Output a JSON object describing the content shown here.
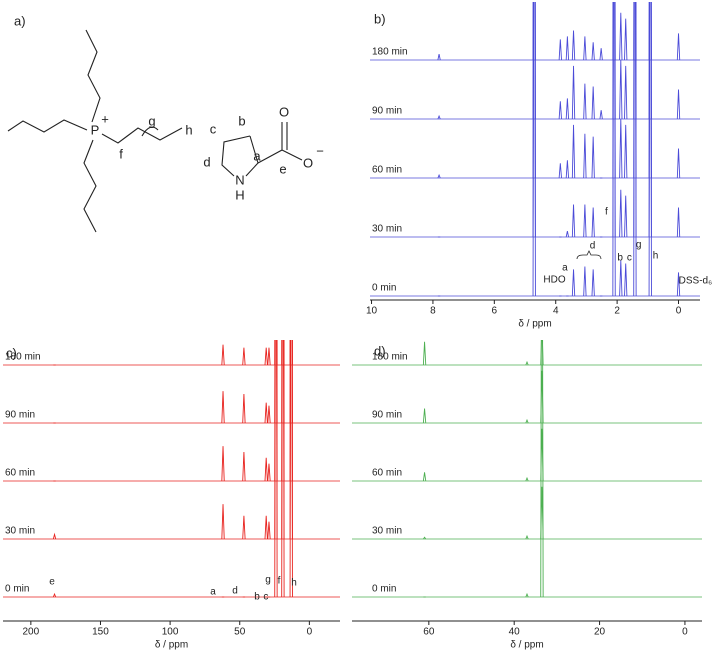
{
  "structure": {
    "panel_label": "a)",
    "atom_labels": [
      "P",
      "+",
      "f",
      "g",
      "h",
      "c",
      "b",
      "d",
      "a",
      "e",
      "N",
      "H",
      "O",
      "O",
      "−"
    ]
  },
  "chart_data": [
    {
      "type": "nmr",
      "panel_label": "b)",
      "xlabel": "δ / ppm",
      "color": "#4b4bd8",
      "xlim": [
        10.05,
        -0.7
      ],
      "xticks": [
        10,
        8,
        6,
        4,
        2,
        0
      ],
      "x": [
        4.7,
        3.42,
        3.05,
        2.78,
        2.1,
        1.88,
        1.72,
        1.42,
        0.92,
        0,
        7.8,
        3.62,
        3.85,
        2.52
      ],
      "series": [
        {
          "name": "0 min",
          "values": [
            10,
            0.45,
            0.5,
            0.45,
            10,
            0.6,
            0.55,
            10,
            10,
            0.4,
            0,
            0,
            0,
            0
          ]
        },
        {
          "name": "30 min",
          "values": [
            10,
            0.55,
            0.55,
            0.5,
            10,
            0.8,
            0.7,
            10,
            10,
            0.5,
            0,
            0.1,
            0,
            0
          ]
        },
        {
          "name": "60 min",
          "values": [
            10,
            0.9,
            0.75,
            0.7,
            10,
            1,
            0.9,
            10,
            10,
            0.5,
            0.05,
            0.3,
            0.25,
            0
          ]
        },
        {
          "name": "90 min",
          "values": [
            10,
            0.9,
            0.6,
            0.55,
            10,
            1,
            0.9,
            10,
            10,
            0.5,
            0.05,
            0.35,
            0.3,
            0.15
          ]
        },
        {
          "name": "180 min",
          "values": [
            10,
            0.5,
            0.4,
            0.3,
            10,
            0.8,
            0.7,
            10,
            10,
            0.45,
            0.1,
            0.4,
            0.35,
            0.2
          ]
        }
      ],
      "annotations": [
        {
          "text": "HDO",
          "x": 4.04
        },
        {
          "text": "a",
          "x": 3.7
        },
        {
          "text": "d",
          "x": 2.8
        },
        {
          "text": "f",
          "x": 2.35
        },
        {
          "text": "b",
          "x": 1.9
        },
        {
          "text": "c",
          "x": 1.6
        },
        {
          "text": "g",
          "x": 1.3
        },
        {
          "text": "h",
          "x": 0.75
        },
        {
          "text": "DSS-d₆",
          "x": -0.55
        }
      ]
    },
    {
      "type": "nmr",
      "panel_label": "c)",
      "xlabel": "δ / ppm",
      "color": "#e8231f",
      "xlim": [
        220,
        -22
      ],
      "xticks": [
        200,
        150,
        100,
        50,
        0
      ],
      "x": [
        183,
        62,
        47,
        31,
        29,
        24,
        19,
        13
      ],
      "series": [
        {
          "name": "0 min",
          "values": [
            0.05,
            0,
            0,
            0,
            0,
            10,
            10,
            10
          ]
        },
        {
          "name": "30 min",
          "values": [
            0.08,
            0.6,
            0.4,
            0.4,
            0.3,
            10,
            10,
            10
          ]
        },
        {
          "name": "60 min",
          "values": [
            0,
            0.6,
            0.5,
            0.4,
            0.3,
            10,
            10,
            10
          ]
        },
        {
          "name": "90 min",
          "values": [
            0,
            0.55,
            0.5,
            0.35,
            0.3,
            10,
            10,
            10
          ]
        },
        {
          "name": "180 min",
          "values": [
            0,
            0.35,
            0.3,
            0.3,
            0.3,
            10,
            10,
            10
          ]
        }
      ],
      "annotations": [
        {
          "text": "a",
          "x": 69.2
        },
        {
          "text": "d",
          "x": 53.4
        },
        {
          "text": "b",
          "x": 37.6
        },
        {
          "text": "c",
          "x": 31.2
        },
        {
          "text": "g",
          "x": 29.7
        },
        {
          "text": "f",
          "x": 21.8
        },
        {
          "text": "h",
          "x": 11
        },
        {
          "text": "e",
          "x": 184.8
        }
      ]
    },
    {
      "type": "nmr",
      "panel_label": "d)",
      "xlabel": "δ / ppm",
      "color": "#4caf50",
      "xlim": [
        78,
        -4
      ],
      "xticks": [
        60,
        40,
        20,
        0
      ],
      "x": [
        61,
        37,
        33.5
      ],
      "series": [
        {
          "name": "0 min",
          "values": [
            0,
            0.05,
            10
          ]
        },
        {
          "name": "30 min",
          "values": [
            0.03,
            0.05,
            0.9
          ]
        },
        {
          "name": "60 min",
          "values": [
            0.15,
            0.05,
            0.9
          ]
        },
        {
          "name": "90 min",
          "values": [
            0.25,
            0.05,
            0.9
          ]
        },
        {
          "name": "180 min",
          "values": [
            0.4,
            0.05,
            0.7
          ]
        }
      ],
      "annotations": []
    }
  ]
}
